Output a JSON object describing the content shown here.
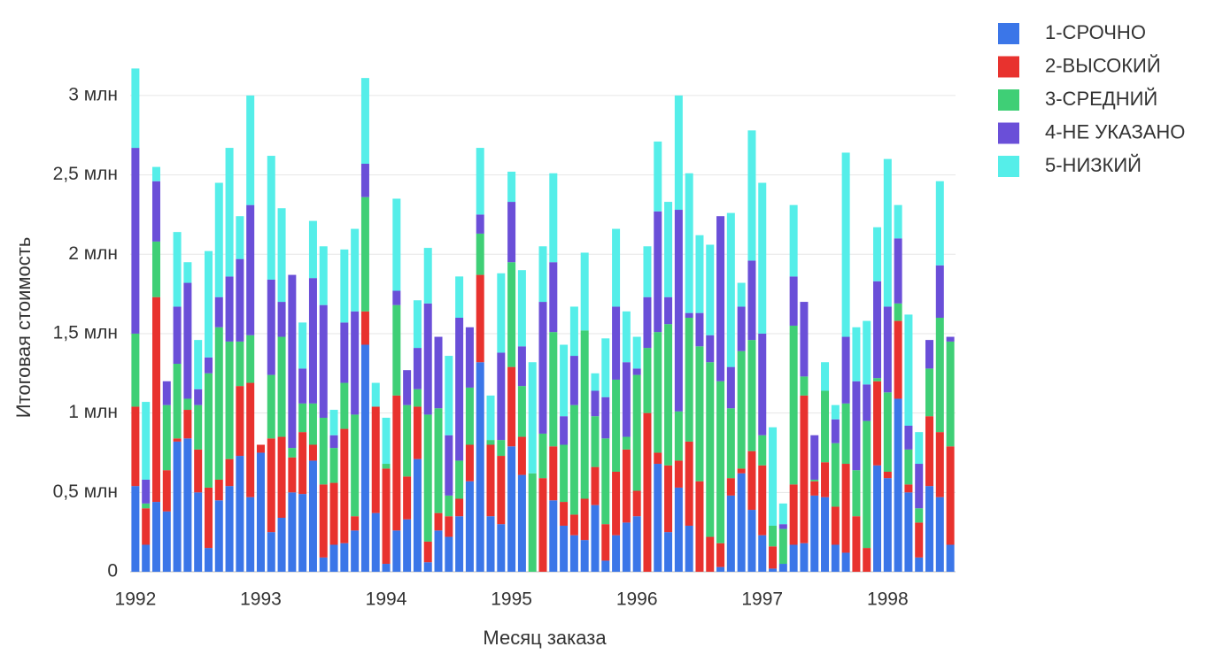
{
  "chart_data": {
    "type": "stacked-bar",
    "x_label": "Месяц заказа",
    "y_label": "Итоговая стоимость",
    "categories": [
      "1992",
      null,
      null,
      null,
      null,
      null,
      null,
      null,
      null,
      null,
      null,
      null,
      "1993",
      null,
      null,
      null,
      null,
      null,
      null,
      null,
      null,
      null,
      null,
      null,
      "1994",
      null,
      null,
      null,
      null,
      null,
      null,
      null,
      null,
      null,
      null,
      null,
      "1995",
      null,
      null,
      null,
      null,
      null,
      null,
      null,
      null,
      null,
      null,
      null,
      "1996",
      null,
      null,
      null,
      null,
      null,
      null,
      null,
      null,
      null,
      null,
      null,
      "1997",
      null,
      null,
      null,
      null,
      null,
      null,
      null,
      null,
      null,
      null,
      null,
      "1998",
      null,
      null,
      null,
      null,
      null,
      null
    ],
    "series": [
      {
        "name": "1-СРОЧНО",
        "color": "#3b76e8",
        "values": [
          0.54,
          0.17,
          0.44,
          0.38,
          0.82,
          0.84,
          0.5,
          0.15,
          0.45,
          0.54,
          0.73,
          0.47,
          0.75,
          0.25,
          0.34,
          0.5,
          0.49,
          0.7,
          0.09,
          0.17,
          0.18,
          0.26,
          1.43,
          0.37,
          0.05,
          0.26,
          0.33,
          0.71,
          0.06,
          0.26,
          0.22,
          0.35,
          0.57,
          1.32,
          0.35,
          0.3,
          0.79,
          0.61,
          0,
          0,
          0.45,
          0.29,
          0.23,
          0.2,
          0.42,
          0.07,
          0.23,
          0.31,
          0.35,
          0,
          0.68,
          0.25,
          0.53,
          0.29,
          0,
          0,
          0.03,
          0.48,
          0.62,
          0.39,
          0.23,
          0.02,
          0.05,
          0.17,
          0.18,
          0.48,
          0.47,
          0.17,
          0.12,
          0,
          0,
          0.67,
          0.59,
          1.09,
          0.5,
          0.09,
          0.54,
          0.47,
          0.17
        ]
      },
      {
        "name": "2-ВЫСОКИЙ",
        "color": "#e8322e",
        "values": [
          0.5,
          0.23,
          1.29,
          0.26,
          0.02,
          0.18,
          0.27,
          0.38,
          0.13,
          0.17,
          0.44,
          0.72,
          0.05,
          0.59,
          0.51,
          0.22,
          0.39,
          0.1,
          0.46,
          0.39,
          0.72,
          0.09,
          0.21,
          0.67,
          0.6,
          0.85,
          0.27,
          0.33,
          0.13,
          0.11,
          0.13,
          0.11,
          0.23,
          0.55,
          0.45,
          0.43,
          0.5,
          0.24,
          0,
          0.59,
          0.34,
          0.15,
          0.13,
          0.26,
          0.24,
          0.23,
          0.4,
          0.46,
          0.16,
          1.0,
          0.07,
          0.42,
          0.17,
          0.53,
          0.57,
          0.22,
          0.15,
          0.11,
          0.03,
          0.37,
          0.44,
          0.14,
          0,
          0.38,
          0.93,
          0.09,
          0.22,
          0.24,
          0.56,
          0.35,
          0.15,
          0.53,
          0.04,
          0.49,
          0.05,
          0.22,
          0.44,
          0.41,
          0.62
        ]
      },
      {
        "name": "3-СРЕДНИЙ",
        "color": "#3fcf76",
        "values": [
          0.46,
          0.03,
          0.35,
          0.41,
          0.47,
          0.07,
          0.28,
          0.72,
          0.96,
          0.74,
          0.28,
          0.3,
          0,
          0.4,
          0.63,
          0.06,
          0.18,
          0.26,
          0.42,
          0.22,
          0.29,
          0.64,
          0.72,
          0,
          0.03,
          0.57,
          0.45,
          0.11,
          0.8,
          0.66,
          0.13,
          0.24,
          0.36,
          0.26,
          0.03,
          0.1,
          0.66,
          0.32,
          0.62,
          0.28,
          0.72,
          0.36,
          0.69,
          1.06,
          0.32,
          0.54,
          0.58,
          0.08,
          0.73,
          0.41,
          0.76,
          0.89,
          0.31,
          0.78,
          0.85,
          1.1,
          1.02,
          0.44,
          0.74,
          0.7,
          0.19,
          0.13,
          0.22,
          1.0,
          0.12,
          0.01,
          0.45,
          0.4,
          0.38,
          0.29,
          0.8,
          0.02,
          0.5,
          0.11,
          0.22,
          0.09,
          0.3,
          0.72,
          0.66
        ]
      },
      {
        "name": "4-НЕ УКАЗАНО",
        "color": "#6a4fd8",
        "values": [
          1.17,
          0.15,
          0.38,
          0.15,
          0.36,
          0.73,
          0.1,
          0.1,
          0.19,
          0.41,
          0.52,
          0.82,
          0,
          0.6,
          0.22,
          1.09,
          0.22,
          0.79,
          0.71,
          0.08,
          0.38,
          0.65,
          0.21,
          0,
          0,
          0.09,
          0.22,
          0.26,
          0.7,
          0.45,
          0.38,
          0.9,
          0.38,
          0.12,
          0,
          0.55,
          0.38,
          0.25,
          0,
          0.83,
          0.44,
          0.18,
          0.31,
          0,
          0.16,
          0.26,
          0.46,
          0.47,
          0.04,
          0.32,
          0.76,
          0.17,
          1.27,
          0.03,
          0.21,
          0.17,
          1.04,
          0.26,
          0.28,
          0.5,
          0.64,
          0,
          0.03,
          0.31,
          0.47,
          0.28,
          0,
          0.15,
          0.42,
          0.56,
          0.23,
          0.61,
          0.54,
          0.41,
          0.15,
          0.28,
          0.18,
          0.33,
          0.03
        ]
      },
      {
        "name": "5-НИЗКИЙ",
        "color": "#55eee9",
        "values": [
          0.5,
          0.49,
          0.09,
          0,
          0.47,
          0.13,
          0.31,
          0.67,
          0.72,
          0.81,
          0.27,
          0.69,
          0,
          0.78,
          0.59,
          0,
          0.29,
          0.36,
          0.37,
          0.16,
          0.46,
          0.52,
          0.54,
          0.15,
          0.29,
          0.58,
          0,
          0.3,
          0.35,
          0,
          0.5,
          0.26,
          0,
          0.42,
          0.28,
          0.5,
          0.19,
          0.48,
          0.7,
          0.35,
          0.56,
          0.45,
          0.31,
          0.49,
          0.11,
          0.37,
          0.49,
          0.32,
          0.2,
          0.32,
          0.44,
          0.6,
          0.72,
          0.88,
          0.49,
          0.57,
          0,
          0.97,
          0.15,
          0.82,
          0.95,
          0.62,
          0.13,
          0.45,
          0,
          0,
          0.18,
          0.09,
          1.16,
          0.34,
          0.4,
          0.34,
          0.93,
          0.21,
          0.7,
          0.2,
          0,
          0.53,
          0
        ]
      }
    ],
    "ylim": [
      0,
      3.2
    ],
    "yticks": [
      0,
      {
        "value": 0.5,
        "label": "0,5 млн"
      },
      {
        "value": 1,
        "label": "1 млн"
      },
      {
        "value": 1.5,
        "label": "1,5 млн"
      },
      {
        "value": 2,
        "label": "2 млн"
      },
      {
        "value": 2.5,
        "label": "2,5 млн"
      },
      {
        "value": 3,
        "label": "3 млн"
      }
    ],
    "grid": true,
    "legend": "right"
  }
}
